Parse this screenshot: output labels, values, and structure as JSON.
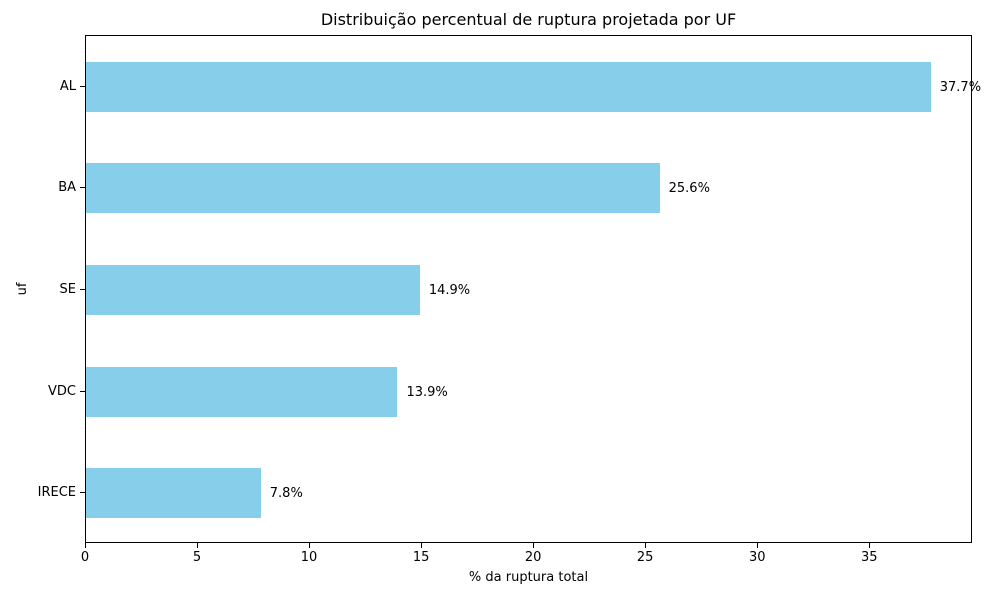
{
  "chart_data": {
    "type": "bar",
    "orientation": "horizontal",
    "title": "Distribuição percentual de ruptura projetada por UF",
    "xlabel": "% da ruptura total",
    "ylabel": "uf",
    "categories": [
      "AL",
      "BA",
      "SE",
      "VDC",
      "IRECE"
    ],
    "values": [
      37.7,
      25.6,
      14.9,
      13.9,
      7.8
    ],
    "value_labels": [
      "37.7%",
      "25.6%",
      "14.9%",
      "13.9%",
      "7.8%"
    ],
    "xticks": [
      0,
      5,
      10,
      15,
      20,
      25,
      30,
      35
    ],
    "xlim": [
      0,
      39.585
    ],
    "bar_color": "#87CEEB",
    "grid": false,
    "legend_position": "none",
    "background_color": "#ffffff",
    "text_color": "#000000"
  }
}
